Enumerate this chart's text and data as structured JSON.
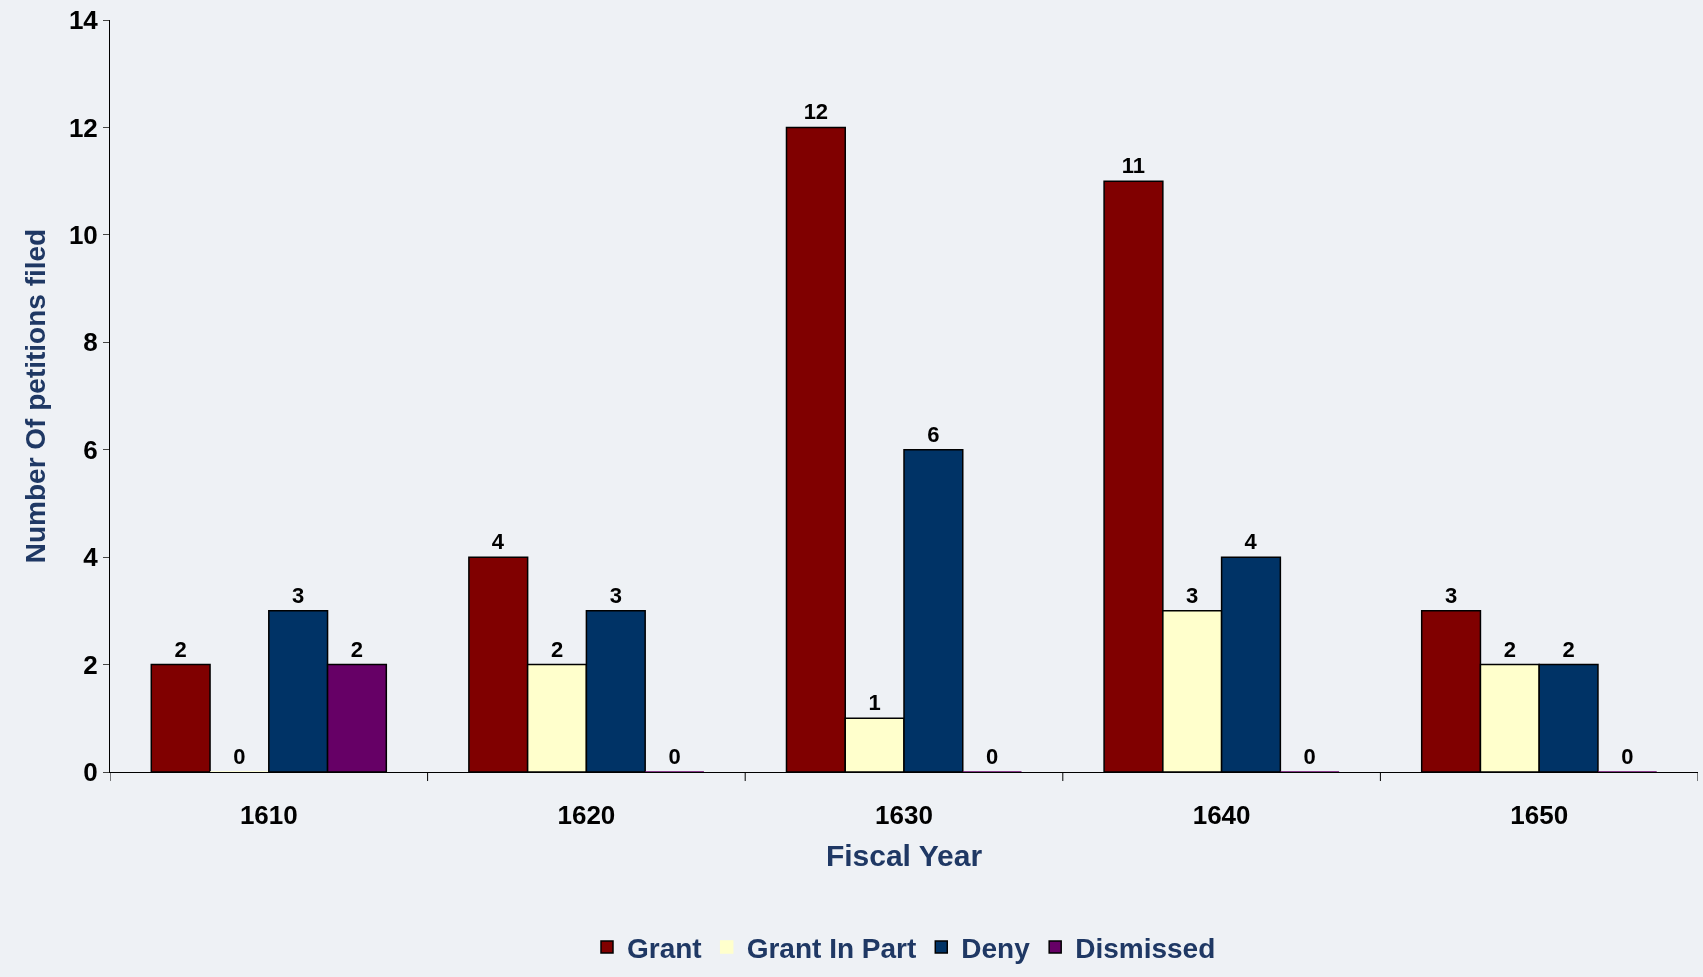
{
  "chart_data": {
    "type": "bar",
    "xlabel": "Fiscal Year",
    "ylabel": "Number Of petitions filed",
    "categories": [
      "1610",
      "1620",
      "1630",
      "1640",
      "1650"
    ],
    "series": [
      {
        "name": "Grant",
        "color": "#800000",
        "values": [
          2,
          4,
          12,
          11,
          3
        ]
      },
      {
        "name": "Grant In Part",
        "color": "#ffffcc",
        "values": [
          0,
          2,
          1,
          3,
          2
        ]
      },
      {
        "name": "Deny",
        "color": "#003366",
        "values": [
          3,
          3,
          6,
          4,
          2
        ]
      },
      {
        "name": "Dismissed",
        "color": "#660066",
        "values": [
          2,
          0,
          0,
          0,
          0
        ]
      }
    ],
    "ylim": [
      0,
      14
    ],
    "yticks": [
      0,
      2,
      4,
      6,
      8,
      10,
      12,
      14
    ],
    "data_labels": true,
    "grid": false,
    "legend": "bottom"
  }
}
